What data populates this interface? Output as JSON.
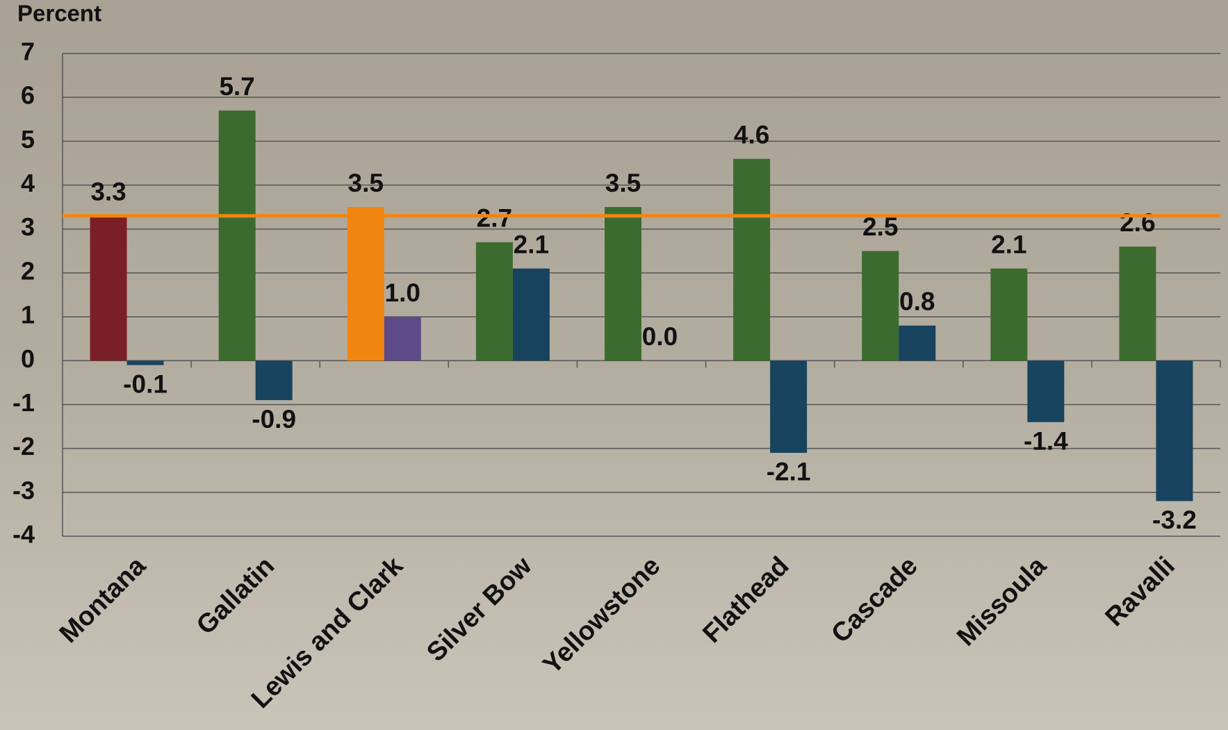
{
  "chart_data": {
    "type": "bar",
    "y_label": "Percent",
    "categories": [
      "Montana",
      "Gallatin",
      "Lewis and Clark",
      "Silver Bow",
      "Yellowstone",
      "Flathead",
      "Cascade",
      "Missoula",
      "Ravalli"
    ],
    "series": [
      {
        "colors": [
          "#7b1f27",
          "#3c6b30",
          "#f2850f",
          "#3c6b30",
          "#3c6b30",
          "#3c6b30",
          "#3c6b30",
          "#3c6b30",
          "#3c6b30"
        ],
        "values": [
          3.3,
          5.7,
          3.5,
          2.7,
          3.5,
          4.6,
          2.5,
          2.1,
          2.6
        ],
        "value_labels": [
          "3.3",
          "5.7",
          "3.5",
          "2.7",
          "3.5",
          "4.6",
          "2.5",
          "2.1",
          "2.6"
        ]
      },
      {
        "colors": [
          "#17435e",
          "#17435e",
          "#5e4a86",
          "#17435e",
          "#17435e",
          "#17435e",
          "#17435e",
          "#17435e",
          "#17435e"
        ],
        "values": [
          -0.1,
          -0.9,
          1.0,
          2.1,
          0.0,
          -2.1,
          0.8,
          -1.4,
          -3.2
        ],
        "value_labels": [
          "-0.1",
          "-0.9",
          "1.0",
          "2.1",
          "0.0",
          "-2.1",
          "0.8",
          "-1.4",
          "-3.2"
        ]
      }
    ],
    "reference_line": {
      "value": 3.3,
      "color": "#f2850f"
    },
    "ylim": [
      -4,
      7
    ],
    "yticks": [
      -4,
      -3,
      -2,
      -1,
      0,
      1,
      2,
      3,
      4,
      5,
      6,
      7
    ],
    "grid": true
  }
}
